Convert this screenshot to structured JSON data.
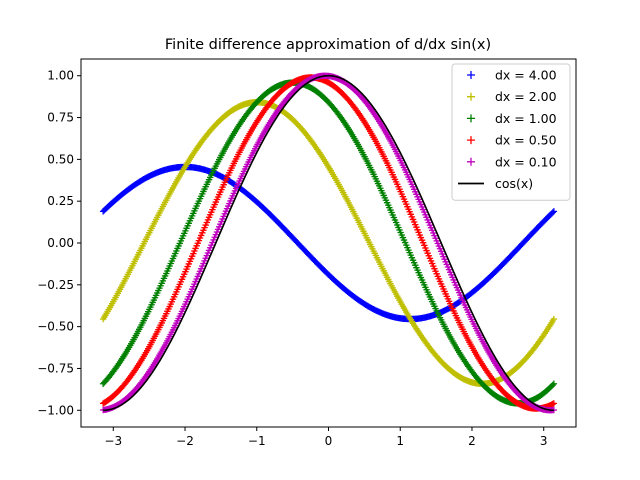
{
  "chart_data": {
    "type": "scatter",
    "title": "Finite difference approximation of d/dx sin(x)",
    "xlabel": "",
    "ylabel": "",
    "xlim": [
      -3.45,
      3.45
    ],
    "ylim": [
      -1.1,
      1.1
    ],
    "x_ticks": [
      -3,
      -2,
      -1,
      0,
      1,
      2,
      3
    ],
    "y_ticks": [
      -1.0,
      -0.75,
      -0.5,
      -0.25,
      0.0,
      0.25,
      0.5,
      0.75,
      1.0
    ],
    "x_tick_labels": [
      "−3",
      "−2",
      "−1",
      "0",
      "1",
      "2",
      "3"
    ],
    "y_tick_labels": [
      "−1.00",
      "−0.75",
      "−0.50",
      "−0.25",
      "0.00",
      "0.25",
      "0.50",
      "0.75",
      "1.00"
    ],
    "grid": false,
    "legend_position": "top-right",
    "x_range": [
      -3.14159,
      3.14159
    ],
    "series": [
      {
        "name": "dx = 4.00",
        "dx": 4.0,
        "color": "#0000ff",
        "marker": "+",
        "formula": "(sin(x+dx)-sin(x))/dx"
      },
      {
        "name": "dx = 2.00",
        "dx": 2.0,
        "color": "#bfbf00",
        "marker": "+",
        "formula": "(sin(x+dx)-sin(x))/dx"
      },
      {
        "name": "dx = 1.00",
        "dx": 1.0,
        "color": "#008000",
        "marker": "+",
        "formula": "(sin(x+dx)-sin(x))/dx"
      },
      {
        "name": "dx = 0.50",
        "dx": 0.5,
        "color": "#ff0000",
        "marker": "+",
        "formula": "(sin(x+dx)-sin(x))/dx"
      },
      {
        "name": "dx = 0.10",
        "dx": 0.1,
        "color": "#bf00bf",
        "marker": "+",
        "formula": "(sin(x+dx)-sin(x))/dx"
      },
      {
        "name": "cos(x)",
        "color": "#000000",
        "marker": "line",
        "formula": "cos(x)"
      }
    ]
  }
}
